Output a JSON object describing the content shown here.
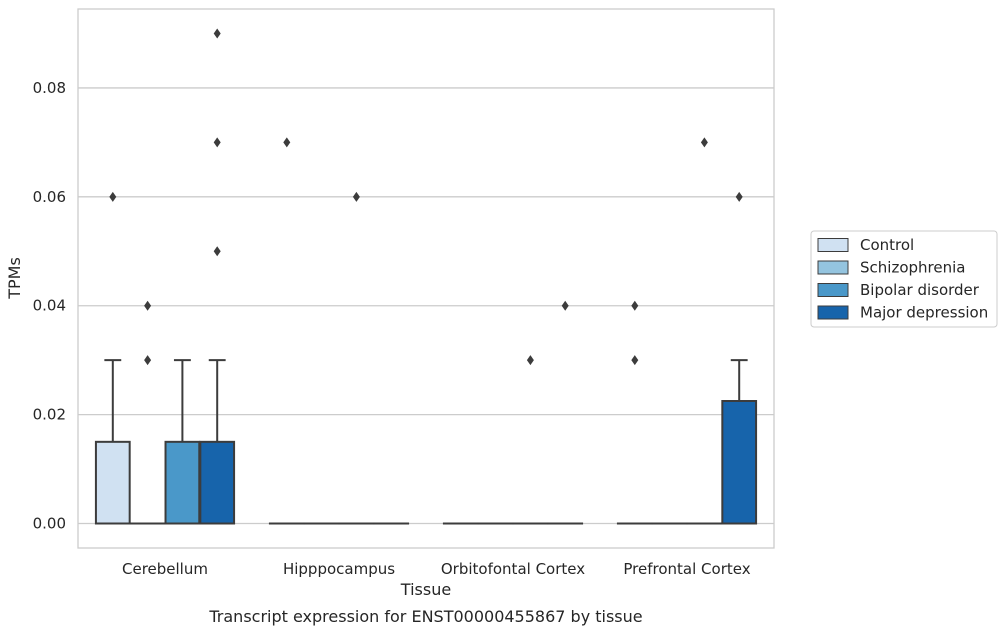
{
  "chart_data": {
    "type": "box",
    "xlabel": "Tissue",
    "ylabel": "TPMs",
    "caption": "Transcript expression for ENST00000455867 by tissue",
    "categories": [
      "Cerebellum",
      "Hipppocampus",
      "Orbitofontal Cortex",
      "Prefrontal Cortex"
    ],
    "ylim": [
      -0.0045,
      0.0945
    ],
    "yticks": [
      "0.00",
      "0.02",
      "0.04",
      "0.06",
      "0.08"
    ],
    "ytick_values": [
      0.0,
      0.02,
      0.04,
      0.06,
      0.08
    ],
    "grid": true,
    "legend_position": "right",
    "series": [
      {
        "name": "Control",
        "color": "#d0e1f2",
        "boxes": [
          {
            "q1": 0,
            "median": 0,
            "q3": 0.015,
            "whisker_low": 0,
            "whisker_high": 0.03,
            "outliers": [
              0.06
            ]
          },
          {
            "q1": 0,
            "median": 0,
            "q3": 0,
            "whisker_low": 0,
            "whisker_high": 0,
            "outliers": [
              0.07
            ]
          },
          {
            "q1": 0,
            "median": 0,
            "q3": 0,
            "whisker_low": 0,
            "whisker_high": 0,
            "outliers": []
          },
          {
            "q1": 0,
            "median": 0,
            "q3": 0,
            "whisker_low": 0,
            "whisker_high": 0,
            "outliers": [
              0.03,
              0.04
            ]
          }
        ]
      },
      {
        "name": "Schizophrenia",
        "color": "#94c4df",
        "boxes": [
          {
            "q1": 0,
            "median": 0,
            "q3": 0,
            "whisker_low": 0,
            "whisker_high": 0,
            "outliers": [
              0.03,
              0.04
            ]
          },
          {
            "q1": 0,
            "median": 0,
            "q3": 0,
            "whisker_low": 0,
            "whisker_high": 0,
            "outliers": []
          },
          {
            "q1": 0,
            "median": 0,
            "q3": 0,
            "whisker_low": 0,
            "whisker_high": 0,
            "outliers": []
          },
          {
            "q1": 0,
            "median": 0,
            "q3": 0,
            "whisker_low": 0,
            "whisker_high": 0,
            "outliers": []
          }
        ]
      },
      {
        "name": "Bipolar disorder",
        "color": "#4a98c9",
        "boxes": [
          {
            "q1": 0,
            "median": 0,
            "q3": 0.015,
            "whisker_low": 0,
            "whisker_high": 0.03,
            "outliers": []
          },
          {
            "q1": 0,
            "median": 0,
            "q3": 0,
            "whisker_low": 0,
            "whisker_high": 0,
            "outliers": [
              0.06
            ]
          },
          {
            "q1": 0,
            "median": 0,
            "q3": 0,
            "whisker_low": 0,
            "whisker_high": 0,
            "outliers": [
              0.03
            ]
          },
          {
            "q1": 0,
            "median": 0,
            "q3": 0,
            "whisker_low": 0,
            "whisker_high": 0,
            "outliers": [
              0.07
            ]
          }
        ]
      },
      {
        "name": "Major depression",
        "color": "#1764ab",
        "boxes": [
          {
            "q1": 0,
            "median": 0,
            "q3": 0.015,
            "whisker_low": 0,
            "whisker_high": 0.03,
            "outliers": [
              0.05,
              0.07,
              0.09
            ]
          },
          {
            "q1": 0,
            "median": 0,
            "q3": 0,
            "whisker_low": 0,
            "whisker_high": 0,
            "outliers": []
          },
          {
            "q1": 0,
            "median": 0,
            "q3": 0,
            "whisker_low": 0,
            "whisker_high": 0,
            "outliers": [
              0.04
            ]
          },
          {
            "q1": 0,
            "median": 0,
            "q3": 0.0225,
            "whisker_low": 0,
            "whisker_high": 0.03,
            "outliers": [
              0.06
            ]
          }
        ]
      }
    ]
  }
}
